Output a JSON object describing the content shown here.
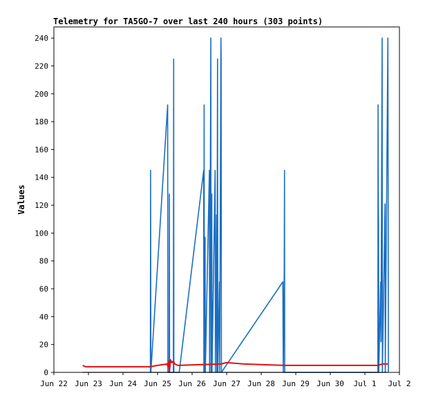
{
  "chart_data": {
    "type": "line",
    "title": "Telemetry for TA5GO-7 over last 240 hours (303 points)",
    "xlabel": "",
    "ylabel": "Values",
    "x_tick_labels": [
      "Jun 22",
      "Jun 23",
      "Jun 24",
      "Jun 25",
      "Jun 26",
      "Jun 27",
      "Jun 28",
      "Jun 29",
      "Jun 30",
      "Jul 1",
      "Jul 2"
    ],
    "y_ticks": [
      0,
      20,
      40,
      60,
      80,
      100,
      120,
      140,
      160,
      180,
      200,
      220,
      240
    ],
    "xlim": [
      "Jun 22",
      "Jul 2"
    ],
    "ylim": [
      0,
      248
    ],
    "grid": false,
    "legend": "none",
    "colors": {
      "series_blue": "#1a6ec2",
      "series_red": "#e01010",
      "axis": "#000000"
    },
    "series": [
      {
        "color": "#1a6ec2",
        "points": [
          [
            "Jun 24 19:00",
            0
          ],
          [
            "Jun 24 19:10",
            145
          ],
          [
            "Jun 24 19:20",
            0
          ],
          [
            "Jun 25 07:00",
            192
          ],
          [
            "Jun 25 07:10",
            0
          ],
          [
            "Jun 25 08:00",
            0
          ],
          [
            "Jun 25 08:10",
            128
          ],
          [
            "Jun 25 08:20",
            0
          ],
          [
            "Jun 25 11:00",
            0
          ],
          [
            "Jun 25 11:10",
            225
          ],
          [
            "Jun 25 11:20",
            0
          ],
          [
            "Jun 25 15:00",
            0
          ],
          [
            "Jun 26 08:00",
            145
          ],
          [
            "Jun 26 08:10",
            0
          ],
          [
            "Jun 26 08:20",
            192
          ],
          [
            "Jun 26 08:30",
            0
          ],
          [
            "Jun 26 09:00",
            97
          ],
          [
            "Jun 26 09:10",
            0
          ],
          [
            "Jun 26 12:00",
            145
          ],
          [
            "Jun 26 12:10",
            0
          ],
          [
            "Jun 26 13:00",
            240
          ],
          [
            "Jun 26 13:10",
            0
          ],
          [
            "Jun 26 13:40",
            128
          ],
          [
            "Jun 26 13:50",
            0
          ],
          [
            "Jun 26 16:00",
            145
          ],
          [
            "Jun 26 16:10",
            0
          ],
          [
            "Jun 26 17:00",
            113
          ],
          [
            "Jun 26 17:10",
            0
          ],
          [
            "Jun 26 17:40",
            225
          ],
          [
            "Jun 26 17:50",
            0
          ],
          [
            "Jun 26 19:00",
            65
          ],
          [
            "Jun 26 19:10",
            0
          ],
          [
            "Jun 26 20:00",
            240
          ],
          [
            "Jun 26 20:10",
            225
          ],
          [
            "Jun 26 20:20",
            0
          ],
          [
            "Jun 28 15:00",
            65
          ],
          [
            "Jun 28 15:10",
            32
          ],
          [
            "Jun 28 15:20",
            0
          ],
          [
            "Jun 28 16:00",
            73
          ],
          [
            "Jun 28 16:10",
            145
          ],
          [
            "Jun 28 16:20",
            0
          ],
          [
            "Jul 1 09:00",
            0
          ],
          [
            "Jul 1 09:10",
            192
          ],
          [
            "Jul 1 09:20",
            128
          ],
          [
            "Jul 1 09:30",
            107
          ],
          [
            "Jul 1 09:40",
            0
          ],
          [
            "Jul 1 11:00",
            65
          ],
          [
            "Jul 1 11:10",
            22
          ],
          [
            "Jul 1 12:00",
            240
          ],
          [
            "Jul 1 12:10",
            0
          ],
          [
            "Jul 1 14:00",
            121
          ],
          [
            "Jul 1 14:10",
            0
          ],
          [
            "Jul 1 16:00",
            240
          ],
          [
            "Jul 1 16:10",
            121
          ],
          [
            "Jul 1 16:20",
            0
          ]
        ]
      },
      {
        "color": "#e01010",
        "points": [
          [
            "Jun 22 20:00",
            5
          ],
          [
            "Jun 22 22:00",
            4
          ],
          [
            "Jun 24 19:00",
            4
          ],
          [
            "Jun 25 00:00",
            5
          ],
          [
            "Jun 25 07:00",
            6
          ],
          [
            "Jun 25 07:10",
            4
          ],
          [
            "Jun 25 08:00",
            8
          ],
          [
            "Jun 25 08:10",
            0
          ],
          [
            "Jun 25 09:00",
            9
          ],
          [
            "Jun 25 10:00",
            7
          ],
          [
            "Jun 25 11:00",
            8
          ],
          [
            "Jun 25 12:00",
            6
          ],
          [
            "Jun 25 14:00",
            5
          ],
          [
            "Jun 26 20:00",
            6
          ],
          [
            "Jun 27 00:00",
            7
          ],
          [
            "Jun 27 12:00",
            6
          ],
          [
            "Jun 28 16:00",
            5
          ],
          [
            "Jul 1 09:00",
            5
          ],
          [
            "Jul 1 12:00",
            6
          ],
          [
            "Jul 1 16:00",
            6
          ]
        ]
      },
      {
        "color": "#000000",
        "points": [
          [
            "Jun 22 20:00",
            0
          ],
          [
            "Jul 1 16:00",
            0
          ]
        ]
      }
    ]
  }
}
